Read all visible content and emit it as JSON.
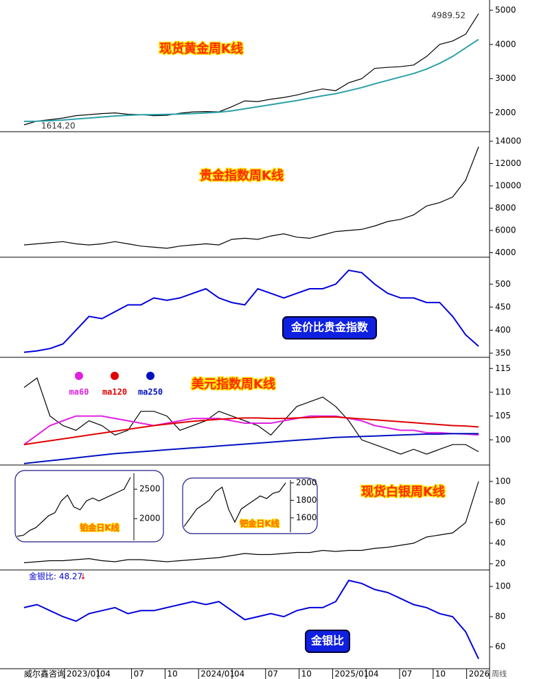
{
  "chart_data": [
    {
      "type": "line",
      "title": "现货黄金周K线",
      "ylim": [
        1450,
        5300
      ],
      "yticks": [
        2000,
        3000,
        4000,
        5000
      ],
      "annotations": [
        "4989.52",
        "1614.20"
      ],
      "series": [
        {
          "color": "#000000",
          "values": [
            1650,
            1760,
            1800,
            1850,
            1920,
            1950,
            1980,
            2000,
            1960,
            1950,
            1920,
            1930,
            1990,
            2030,
            2040,
            2030,
            2180,
            2350,
            2330,
            2400,
            2450,
            2520,
            2620,
            2700,
            2650,
            2880,
            3000,
            3300,
            3330,
            3350,
            3400,
            3650,
            4000,
            4100,
            4300,
            4900
          ]
        },
        {
          "color": "#2aa0a8",
          "values": [
            1750,
            1755,
            1770,
            1790,
            1820,
            1850,
            1880,
            1910,
            1930,
            1945,
            1950,
            1955,
            1965,
            1980,
            2000,
            2020,
            2060,
            2120,
            2180,
            2240,
            2300,
            2360,
            2430,
            2500,
            2560,
            2650,
            2740,
            2850,
            2950,
            3050,
            3150,
            3280,
            3450,
            3650,
            3900,
            4150
          ]
        }
      ]
    },
    {
      "type": "line",
      "title": "贵金指数周K线",
      "ylim": [
        3600,
        14800
      ],
      "yticks": [
        4000,
        6000,
        8000,
        10000,
        12000,
        14000
      ],
      "series": [
        {
          "color": "#000000",
          "values": [
            4700,
            4800,
            4900,
            5000,
            4800,
            4700,
            4800,
            5000,
            4800,
            4600,
            4500,
            4400,
            4600,
            4700,
            4800,
            4700,
            5200,
            5300,
            5200,
            5500,
            5700,
            5400,
            5300,
            5600,
            5900,
            6000,
            6100,
            6400,
            6800,
            7000,
            7400,
            8200,
            8500,
            9000,
            10500,
            13500
          ]
        }
      ]
    },
    {
      "type": "line",
      "title": "金价比贵金指数",
      "ylim": [
        341,
        557
      ],
      "yticks": [
        350,
        400,
        450,
        500
      ],
      "series": [
        {
          "color": "#0000dd",
          "values": [
            352,
            355,
            360,
            370,
            400,
            430,
            425,
            440,
            455,
            455,
            470,
            465,
            470,
            480,
            490,
            470,
            460,
            455,
            490,
            480,
            470,
            480,
            490,
            490,
            500,
            530,
            525,
            500,
            480,
            470,
            470,
            460,
            460,
            430,
            390,
            365
          ]
        }
      ]
    },
    {
      "type": "line",
      "title": "美元指数周K线",
      "ylim": [
        94.7,
        117.2
      ],
      "yticks": [
        100,
        105,
        110,
        115
      ],
      "series": [
        {
          "color": "#000000",
          "values": [
            111,
            113,
            105,
            103,
            102,
            104,
            103,
            101,
            102,
            106,
            106,
            105,
            102,
            103,
            104,
            106,
            105,
            104,
            103,
            101,
            104,
            107,
            108,
            109,
            107,
            104,
            100,
            99,
            98,
            97,
            98,
            97,
            98,
            99,
            99,
            97.5
          ]
        },
        {
          "name": "ma60",
          "color": "#e020e0",
          "values": [
            99,
            101,
            103,
            104,
            105,
            105,
            105,
            104.5,
            104,
            103.5,
            103,
            103.5,
            104,
            104.5,
            104.5,
            104.5,
            104,
            103.5,
            103.5,
            103.5,
            104,
            104.5,
            105,
            105,
            105,
            104.5,
            104,
            103,
            102.5,
            102,
            102,
            101.5,
            101.5,
            101.3,
            101.2,
            101
          ]
        },
        {
          "name": "ma120",
          "color": "#e00000",
          "values": [
            99,
            99.4,
            99.8,
            100.2,
            100.6,
            101,
            101.4,
            101.8,
            102.2,
            102.6,
            103,
            103.3,
            103.6,
            103.9,
            104.1,
            104.3,
            104.5,
            104.6,
            104.6,
            104.5,
            104.5,
            104.6,
            104.7,
            104.8,
            104.8,
            104.6,
            104.4,
            104.2,
            104,
            103.8,
            103.6,
            103.4,
            103.2,
            103,
            102.9,
            102.7
          ]
        },
        {
          "name": "ma250",
          "color": "#0010c0",
          "values": [
            95,
            95.3,
            95.6,
            95.9,
            96.2,
            96.5,
            96.8,
            97.1,
            97.3,
            97.5,
            97.7,
            97.9,
            98.1,
            98.3,
            98.5,
            98.7,
            98.9,
            99.1,
            99.3,
            99.5,
            99.7,
            99.9,
            100.1,
            100.3,
            100.5,
            100.6,
            100.7,
            100.8,
            100.9,
            101,
            101.1,
            101.2,
            101.2,
            101.3,
            101.3,
            101.3
          ]
        }
      ]
    },
    {
      "type": "line",
      "title": "现货白银周K线",
      "ylim": [
        14,
        115.3
      ],
      "yticks": [
        20,
        40,
        60,
        80,
        100
      ],
      "series": [
        {
          "color": "#000000",
          "values": [
            21,
            22,
            23,
            23,
            24,
            25,
            23,
            22,
            24,
            24,
            23,
            22,
            23,
            24,
            25,
            26,
            28,
            30,
            29,
            29,
            30,
            31,
            31,
            33,
            32,
            33,
            33,
            35,
            36,
            38,
            40,
            46,
            48,
            50,
            60,
            100
          ]
        }
      ]
    },
    {
      "type": "line",
      "title": "金银比",
      "ylim": [
        45.5,
        110.5
      ],
      "yticks": [
        60,
        80,
        100
      ],
      "annotation": {
        "label": "金银比: 48.27",
        "arrow": "↓"
      },
      "series": [
        {
          "color": "#0000dd",
          "values": [
            86,
            88,
            84,
            80,
            77,
            82,
            84,
            86,
            82,
            84,
            84,
            86,
            88,
            90,
            88,
            90,
            84,
            78,
            80,
            82,
            80,
            84,
            86,
            86,
            90,
            104,
            102,
            98,
            96,
            92,
            88,
            86,
            82,
            80,
            70,
            52
          ]
        }
      ]
    },
    {
      "type": "line",
      "title": "铂金日K线",
      "ylim": [
        1630,
        2770
      ],
      "yticks": [
        2000,
        2500
      ],
      "series": [
        {
          "color": "#000000",
          "values": [
            1700,
            1720,
            1800,
            1850,
            1950,
            2050,
            2100,
            2300,
            2400,
            2200,
            2150,
            2300,
            2350,
            2300,
            2350,
            2400,
            2450,
            2500,
            2700
          ]
        }
      ]
    },
    {
      "type": "line",
      "title": "钯金日K线",
      "ylim": [
        1435,
        2031
      ],
      "yticks": [
        1600,
        1800,
        2000
      ],
      "series": [
        {
          "color": "#000000",
          "values": [
            1500,
            1600,
            1700,
            1750,
            1800,
            1900,
            1950,
            1700,
            1550,
            1700,
            1750,
            1800,
            1850,
            1820,
            1880,
            1900,
            2000
          ]
        }
      ]
    }
  ],
  "x_axis": {
    "labels": [
      "2023/01",
      "04",
      "07",
      "10",
      "2024/01",
      "04",
      "07",
      "10",
      "2025/01",
      "04",
      "07",
      "10",
      "2026"
    ],
    "unit": "周线"
  },
  "footer": "威尔鑫咨询"
}
